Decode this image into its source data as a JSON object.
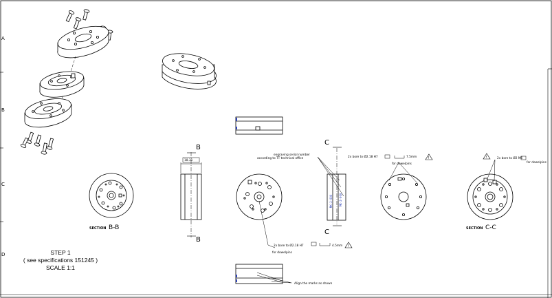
{
  "frame": {
    "edge_marks_left": [
      "A",
      "B",
      "C",
      "D"
    ]
  },
  "labels": {
    "step_line1": "STEP 1",
    "step_line2": "( see specifications 151245 )",
    "step_line3": "SCALE 1:1",
    "section_bb_word": "SECTION",
    "section_bb_letters": "B-B",
    "section_cc_word": "SECTION",
    "section_cc_letters": "C-C",
    "cut_b_top": "B",
    "cut_b_bottom": "B",
    "cut_c_top": "C",
    "cut_c_bottom": "C",
    "dim_width": "18.31",
    "note_engraving_l1": "engraving serial number",
    "note_engraving_l2": "according to TT technical office",
    "note_bore_right_l1": "2x bore to Ø2.18 H7",
    "note_bore_right_depth": "7.5mm",
    "note_bore_right_l2": "for dowelpins",
    "note_bore_far_l1": "2x bore to Ø2 M6",
    "note_bore_far_l2": "for dowelpins",
    "note_bore_bottom_l1": "2x bore to Ø2.18 H7",
    "note_bore_bottom_depth": "4.5mm",
    "note_bore_bottom_l2": "for dowelpins",
    "note_align": "Align the marks as shown",
    "vertical_text": "MK-2-000"
  },
  "colors": {
    "line": "#000000",
    "blue_mark": "#2a3fb8",
    "background": "#ffffff"
  }
}
